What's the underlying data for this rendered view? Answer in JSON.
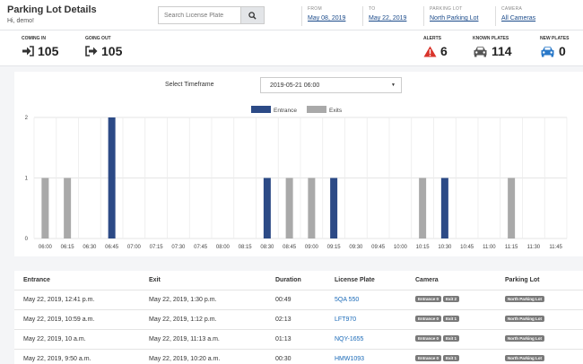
{
  "header": {
    "title": "Parking Lot Details",
    "greeting": "Hi, demo!",
    "search_placeholder": "Search License Plate",
    "filters": [
      {
        "label": "FROM",
        "value": "May 08, 2019"
      },
      {
        "label": "TO",
        "value": "May 22, 2019"
      },
      {
        "label": "PARKING LOT",
        "value": "North Parking Lot"
      },
      {
        "label": "CAMERA",
        "value": "All Cameras"
      }
    ]
  },
  "stats": {
    "coming_in": {
      "label": "COMING IN",
      "value": "105"
    },
    "going_out": {
      "label": "GOING OUT",
      "value": "105"
    },
    "alerts": {
      "label": "ALERTS",
      "value": "6"
    },
    "known_plates": {
      "label": "KNOWN PLATES",
      "value": "114"
    },
    "new_plates": {
      "label": "NEW PLATES",
      "value": "0"
    }
  },
  "timeframe": {
    "label": "Select Timeframe",
    "value": "2019-05-21 06:00"
  },
  "colors": {
    "entrance": "#2c4a86",
    "exits": "#a9a9a9",
    "alert": "#d9342b",
    "new_plate": "#2a79c9",
    "link": "#1a6ab8"
  },
  "chart_data": {
    "type": "bar",
    "categories": [
      "06:00",
      "06:15",
      "06:30",
      "06:45",
      "07:00",
      "07:15",
      "07:30",
      "07:45",
      "08:00",
      "08:15",
      "08:30",
      "08:45",
      "09:00",
      "09:15",
      "09:30",
      "09:45",
      "10:00",
      "10:15",
      "10:30",
      "10:45",
      "11:00",
      "11:15",
      "11:30",
      "11:45"
    ],
    "series": [
      {
        "name": "Entrance",
        "values": [
          0,
          0,
          0,
          2,
          0,
          0,
          0,
          0,
          0,
          0,
          1,
          0,
          0,
          1,
          0,
          0,
          0,
          0,
          1,
          0,
          0,
          0,
          0,
          0
        ]
      },
      {
        "name": "Exits",
        "values": [
          1,
          1,
          0,
          0,
          0,
          0,
          0,
          0,
          0,
          0,
          0,
          1,
          1,
          0,
          0,
          0,
          0,
          1,
          0,
          0,
          0,
          1,
          0,
          0
        ]
      }
    ],
    "yticks": [
      "0",
      "1",
      "2"
    ],
    "ylim": [
      0,
      2
    ],
    "legend": "top-center",
    "grid": true
  },
  "table": {
    "columns": [
      "Entrance",
      "Exit",
      "Duration",
      "License Plate",
      "Camera",
      "Parking Lot"
    ],
    "rows": [
      {
        "entrance": "May 22, 2019, 12:41 p.m.",
        "exit": "May 22, 2019, 1:30 p.m.",
        "duration": "00:49",
        "plate": "5QA 550",
        "cam_in": "Entrance 0",
        "cam_out": "Exit 2",
        "lot": "North Parking Lot"
      },
      {
        "entrance": "May 22, 2019, 10:59 a.m.",
        "exit": "May 22, 2019, 1:12 p.m.",
        "duration": "02:13",
        "plate": "LFT970",
        "cam_in": "Entrance 0",
        "cam_out": "Exit 1",
        "lot": "North Parking Lot"
      },
      {
        "entrance": "May 22, 2019, 10 a.m.",
        "exit": "May 22, 2019, 11:13 a.m.",
        "duration": "01:13",
        "plate": "NQY-1655",
        "cam_in": "Entrance 0",
        "cam_out": "Exit 1",
        "lot": "North Parking Lot"
      },
      {
        "entrance": "May 22, 2019, 9:50 a.m.",
        "exit": "May 22, 2019, 10:20 a.m.",
        "duration": "00:30",
        "plate": "HMW1093",
        "cam_in": "Entrance 0",
        "cam_out": "Exit 1",
        "lot": "North Parking Lot"
      }
    ]
  }
}
